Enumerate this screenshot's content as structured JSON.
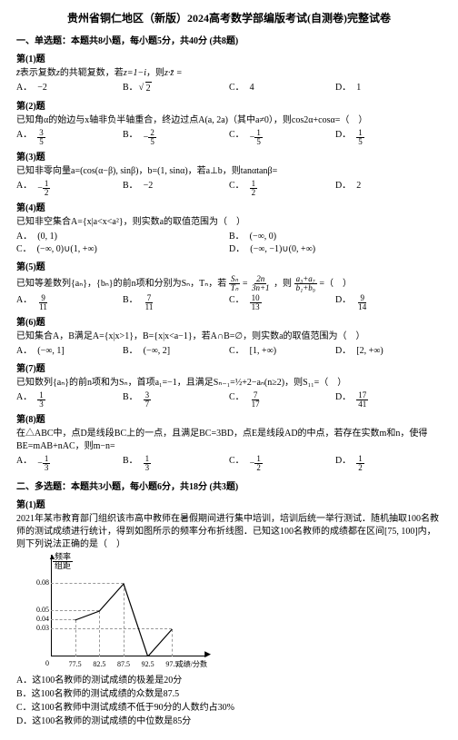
{
  "title": "贵州省铜仁地区（新版）2024高考数学部编版考试(自测卷)完整试卷",
  "section1": "一、单选题：本题共8小题，每小题5分，共40分 (共8题)",
  "q1": {
    "num": "第(1)题",
    "stem_pre": "表示复数",
    "stem_mid": "的共轭复数，若",
    "stem_z": "z=1−i",
    "stem_post": "，则",
    "stem_expr": "z·z̄ =",
    "A": "2",
    "A_sub": "−",
    "B": "2",
    "B_sq": "√",
    "C": "4",
    "D": "1"
  },
  "q2": {
    "num": "第(2)题",
    "stem": "已知角α的始边与x轴非负半轴重合，终边过点A(a, 2a)（其中a≠0），则cos2α+cosα=（　）",
    "A_num": "3",
    "A_den": "5",
    "B_num": "2",
    "B_den": "5",
    "B_sign": "−",
    "C_num": "1",
    "C_den": "5",
    "C_sign": "−",
    "D_num": "1",
    "D_den": "5"
  },
  "q3": {
    "num": "第(3)题",
    "stem": "已知非零向量a=(cos(α−β), sinβ)，b=(1, sinα)，若a⊥b，则tanαtanβ=",
    "A_sign": "−",
    "A_num": "1",
    "A_den": "2",
    "B": "−2",
    "C_num": "1",
    "C_den": "2",
    "D": "2"
  },
  "q4": {
    "num": "第(4)题",
    "stem": "已知非空集合A={x|a<x<a²}，则实数a的取值范围为（　）",
    "A": "(0, 1)",
    "B": "(−∞, 0)",
    "C": "(−∞, 0)∪(1, +∞)",
    "D": "(−∞, −1)∪(0, +∞)"
  },
  "q5": {
    "num": "第(5)题",
    "stem_pre": "已知等差数列{aₙ}，{bₙ}的前n项和分别为Sₙ，Tₙ，若",
    "stem_frac1_num": "Sₙ",
    "stem_frac1_den": "Tₙ",
    "stem_eq": "=",
    "stem_frac2_num": "2n",
    "stem_frac2_den": "3n+1",
    "stem_mid": "，则",
    "stem_frac3_num": "a₃+a₇",
    "stem_frac3_den": "b₁+b₉",
    "stem_post": "=（　）",
    "A_num": "9",
    "A_den": "11",
    "B_num": "7",
    "B_den": "11",
    "C_num": "10",
    "C_den": "13",
    "D_num": "9",
    "D_den": "14"
  },
  "q6": {
    "num": "第(6)题",
    "stem": "已知集合A，B满足A={x|x>1}，B={x|x<a−1}，若A∩B=∅，则实数a的取值范围为（　）",
    "A": "(−∞, 1]",
    "B": "(−∞, 2]",
    "C": "[1, +∞)",
    "D": "[2, +∞)"
  },
  "q7": {
    "num": "第(7)题",
    "stem": "已知数列{aₙ}的前n项和为Sₙ，首项a₁=−1，且满足Sₙ₋₁=½+2−aₙ(n≥2)，则S₁₁=（　）",
    "A_num": "1",
    "A_den": "3",
    "B_num": "3",
    "B_den": "7",
    "C_num": "7",
    "C_den": "17",
    "D_num": "17",
    "D_den": "41"
  },
  "q8": {
    "num": "第(8)题",
    "stem": "在△ABC中，点D是线段BC上的一点，且满足BC=3BD，点E是线段AD的中点，若存在实数m和n，使得BE=mAB+nAC，则m−n=",
    "A_sign": "−",
    "A_num": "1",
    "A_den": "3",
    "B_num": "1",
    "B_den": "3",
    "C_sign": "−",
    "C_num": "1",
    "C_den": "2",
    "D_num": "1",
    "D_den": "2"
  },
  "section2": "二、多选题：本题共3小题，每小题6分，共18分 (共3题)",
  "mq1": {
    "num": "第(1)题",
    "stem": "2021年某市教育部门组织该市高中教师在暑假期间进行集中培训，培训后统一举行测试．随机抽取100名教师的测试成绩进行统计，得到如图所示的频率分布折线图．已知这100名教师的成绩都在区间[75, 100]内，则下列说法正确的是（　）",
    "chart": {
      "type": "frequency-polyline",
      "ylabel_num": "频率",
      "ylabel_den": "组距",
      "xlabel": "成绩/分数",
      "xticks": [
        "77.5",
        "82.5",
        "87.5",
        "92.5",
        "97.5"
      ],
      "yticks": [
        "0.03",
        "0.04",
        "0.05",
        "0.08"
      ],
      "yvalues": [
        0.04,
        0.05,
        0.08,
        0,
        0.03
      ],
      "ylim": [
        0,
        0.1
      ],
      "x_origin": "0",
      "line_color": "#000000",
      "grid_color": "#999999",
      "background": "#ffffff"
    },
    "A": "A．这100名教师的测试成绩的极差是20分",
    "B": "B．这100名教师的测试成绩的众数是87.5",
    "C": "C．这100名教师中测试成绩不低于90分的人数约占30%",
    "D": "D．这100名教师的测试成绩的中位数是85分"
  }
}
